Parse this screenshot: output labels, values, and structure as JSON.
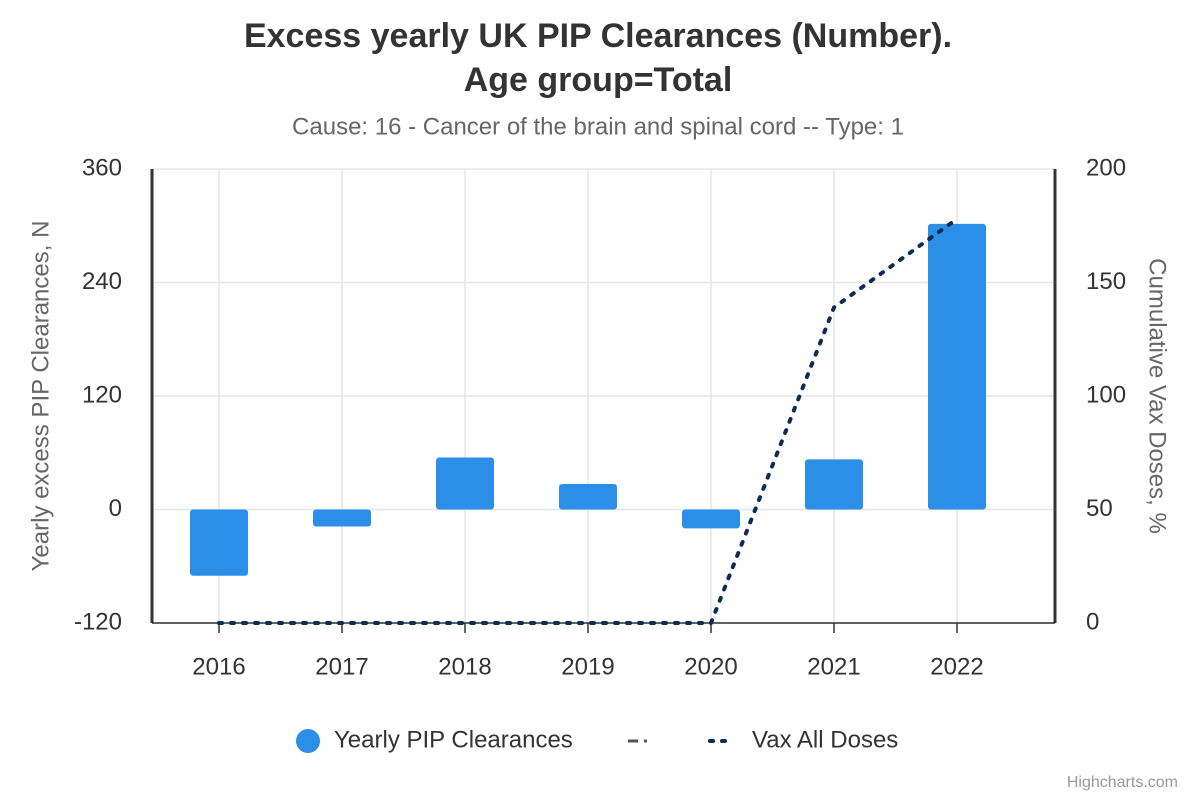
{
  "chart_data": {
    "type": "bar",
    "title": "Excess yearly UK PIP Clearances (Number). Age group=Total",
    "subtitle": "Cause: 16 - Cancer of the brain and spinal cord -- Type: 1",
    "y_label": "Yearly excess PIP Clearances, N",
    "y2_label": "Cumulative Vax Doses, %",
    "categories": [
      "2016",
      "2017",
      "2018",
      "2019",
      "2020",
      "2021",
      "2022"
    ],
    "series": [
      {
        "name": "Yearly PIP Clearances",
        "type": "bar",
        "color": "#2b8fe8",
        "values": [
          -70,
          -18,
          55,
          27,
          -20,
          53,
          302
        ]
      },
      {
        "name": "Vax All Doses",
        "type": "line",
        "axis": "y2",
        "color": "#0d2c54",
        "values": [
          0,
          0,
          0,
          0,
          0,
          139,
          178
        ]
      }
    ],
    "ylim": [
      -120,
      360
    ],
    "yticks": [
      -120,
      0,
      120,
      240,
      360
    ],
    "y2lim": [
      0,
      200
    ],
    "y2ticks": [
      0,
      50,
      100,
      150,
      200
    ],
    "grid": true,
    "legend": "bottom",
    "credits": "Highcharts.com"
  }
}
